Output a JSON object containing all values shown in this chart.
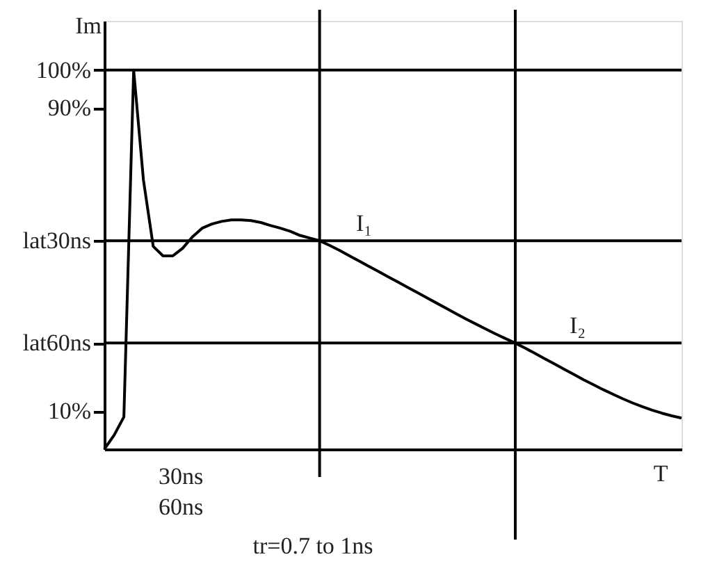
{
  "chart_data": {
    "type": "line",
    "xlabel": "T",
    "ylabel": "Im",
    "categories": [
      null,
      null,
      null,
      null,
      null,
      null,
      null,
      null,
      null,
      null,
      null,
      null,
      null,
      null,
      null,
      null,
      null,
      null,
      null,
      null,
      null,
      null,
      null,
      null,
      null,
      null,
      null,
      null,
      null,
      null,
      null,
      null,
      null,
      null,
      null,
      null,
      null,
      null,
      null,
      null,
      null,
      null,
      null,
      null,
      null,
      null,
      null,
      null,
      null,
      null,
      null,
      null,
      null,
      null,
      null,
      null,
      null,
      null,
      null,
      null
    ],
    "series": [
      {
        "color": "#000000",
        "values": [
          0,
          3.7,
          8.5,
          100,
          71,
          53.5,
          51,
          51,
          53,
          56,
          58.3,
          59.4,
          60.1,
          60.5,
          60.5,
          60.3,
          59.8,
          59,
          58.3,
          57.5,
          56.4,
          55.7,
          55,
          53.8,
          52.5,
          51.1,
          49.7,
          48.3,
          46.9,
          45.5,
          44.1,
          42.7,
          41.3,
          39.9,
          38.5,
          37.1,
          35.7,
          34.3,
          33,
          31.7,
          30.4,
          29.2,
          28,
          26.7,
          25.3,
          23.9,
          22.5,
          21.1,
          19.7,
          18.3,
          17,
          15.7,
          14.5,
          13.3,
          12.2,
          11.2,
          10.3,
          9.5,
          8.8,
          8.2
        ]
      }
    ],
    "ylim": [
      0,
      113
    ],
    "yticks": [
      {
        "value": 100,
        "label": "100%"
      },
      {
        "value": 90,
        "label": "90%"
      },
      {
        "value": 55,
        "label": "lat30ns"
      },
      {
        "value": 28,
        "label": "lat60ns"
      },
      {
        "value": 10,
        "label": "10%"
      }
    ],
    "tick_labels": "y",
    "grid": false,
    "marker": "none",
    "line_style": "solid",
    "ref_lines": [
      {
        "axis": "y",
        "value": 100,
        "color": "#000000"
      },
      {
        "axis": "y",
        "value": 55,
        "color": "#000000"
      },
      {
        "axis": "y",
        "value": 28,
        "color": "#000000"
      }
    ],
    "annotations": [
      {
        "text": "I₁",
        "y": 55
      },
      {
        "text": "I₂",
        "y": 28
      },
      "30ns",
      "60ns",
      "tr=0.7 to 1ns"
    ]
  }
}
